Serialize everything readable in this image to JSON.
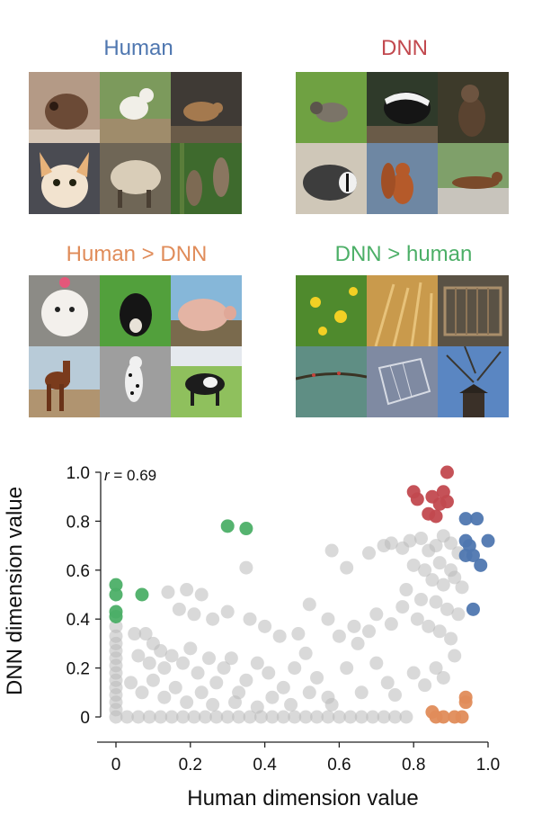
{
  "panels": [
    {
      "title": "Human",
      "color": "#4f77b0",
      "photos": [
        "rat",
        "small white dog",
        "mouse",
        "chihuahua",
        "sheep",
        "sloths"
      ]
    },
    {
      "title": "DNN",
      "color": "#c2494f",
      "photos": [
        "raccoon",
        "skunk",
        "otter",
        "badger",
        "squirrel",
        "weasel"
      ]
    },
    {
      "title": "Human > DNN",
      "color": "#e08c5a",
      "photos": [
        "poodle",
        "puppy",
        "pig",
        "horse",
        "dalmatian",
        "cow"
      ]
    },
    {
      "title": "DNN > human",
      "color": "#4caf67",
      "photos": [
        "yellow flowers",
        "wheat",
        "wooden cage",
        "branch",
        "wire cage",
        "bird feeder"
      ]
    }
  ],
  "chart_data": {
    "type": "scatter",
    "annotation": {
      "italic": "r",
      "text": " = 0.69"
    },
    "xlabel": "Human dimension value",
    "ylabel": "DNN dimension value",
    "xlim": [
      0,
      1.0
    ],
    "ylim": [
      0,
      1.0
    ],
    "x_ticks": [
      "0",
      "0.2",
      "0.4",
      "0.6",
      "0.8",
      "1.0"
    ],
    "y_ticks": [
      "0",
      "0.2",
      "0.4",
      "0.6",
      "0.8",
      "1.0"
    ],
    "grid": false,
    "colors": {
      "gray": "#b9b9b9",
      "human": "#4f77b0",
      "dnn": "#c2494f",
      "human_gt_dnn": "#e08c5a",
      "dnn_gt_human": "#4caf67"
    },
    "highlight_series": [
      {
        "group": "dnn",
        "points": [
          [
            0.89,
            1.0
          ],
          [
            0.8,
            0.92
          ],
          [
            0.81,
            0.89
          ],
          [
            0.85,
            0.9
          ],
          [
            0.88,
            0.92
          ],
          [
            0.87,
            0.87
          ],
          [
            0.89,
            0.88
          ],
          [
            0.84,
            0.83
          ],
          [
            0.86,
            0.82
          ]
        ]
      },
      {
        "group": "human",
        "points": [
          [
            0.94,
            0.81
          ],
          [
            0.97,
            0.81
          ],
          [
            0.94,
            0.72
          ],
          [
            1.0,
            0.72
          ],
          [
            0.95,
            0.7
          ],
          [
            0.94,
            0.66
          ],
          [
            0.96,
            0.66
          ],
          [
            0.98,
            0.62
          ],
          [
            0.96,
            0.44
          ]
        ]
      },
      {
        "group": "dnn_gt_human",
        "points": [
          [
            0.3,
            0.78
          ],
          [
            0.35,
            0.77
          ],
          [
            0.0,
            0.54
          ],
          [
            0.0,
            0.5
          ],
          [
            0.07,
            0.5
          ],
          [
            0.0,
            0.43
          ],
          [
            0.0,
            0.41
          ]
        ]
      },
      {
        "group": "human_gt_dnn",
        "points": [
          [
            0.94,
            0.08
          ],
          [
            0.94,
            0.06
          ],
          [
            0.85,
            0.02
          ],
          [
            0.86,
            0.0
          ],
          [
            0.88,
            0.0
          ],
          [
            0.91,
            0.0
          ],
          [
            0.93,
            0.0
          ]
        ]
      }
    ],
    "gray_points": [
      [
        0.0,
        0.37
      ],
      [
        0.0,
        0.33
      ],
      [
        0.0,
        0.3
      ],
      [
        0.0,
        0.27
      ],
      [
        0.0,
        0.24
      ],
      [
        0.0,
        0.21
      ],
      [
        0.0,
        0.18
      ],
      [
        0.0,
        0.15
      ],
      [
        0.0,
        0.12
      ],
      [
        0.0,
        0.09
      ],
      [
        0.0,
        0.06
      ],
      [
        0.0,
        0.03
      ],
      [
        0.0,
        0.0
      ],
      [
        0.03,
        0.0
      ],
      [
        0.06,
        0.0
      ],
      [
        0.09,
        0.0
      ],
      [
        0.12,
        0.0
      ],
      [
        0.15,
        0.0
      ],
      [
        0.18,
        0.0
      ],
      [
        0.21,
        0.0
      ],
      [
        0.24,
        0.0
      ],
      [
        0.27,
        0.0
      ],
      [
        0.3,
        0.0
      ],
      [
        0.33,
        0.0
      ],
      [
        0.36,
        0.0
      ],
      [
        0.39,
        0.0
      ],
      [
        0.42,
        0.0
      ],
      [
        0.45,
        0.0
      ],
      [
        0.48,
        0.0
      ],
      [
        0.51,
        0.0
      ],
      [
        0.54,
        0.0
      ],
      [
        0.57,
        0.0
      ],
      [
        0.6,
        0.0
      ],
      [
        0.63,
        0.0
      ],
      [
        0.66,
        0.0
      ],
      [
        0.69,
        0.0
      ],
      [
        0.72,
        0.0
      ],
      [
        0.75,
        0.0
      ],
      [
        0.78,
        0.0
      ],
      [
        0.35,
        0.61
      ],
      [
        0.58,
        0.68
      ],
      [
        0.62,
        0.61
      ],
      [
        0.68,
        0.67
      ],
      [
        0.72,
        0.7
      ],
      [
        0.74,
        0.71
      ],
      [
        0.77,
        0.69
      ],
      [
        0.79,
        0.72
      ],
      [
        0.82,
        0.73
      ],
      [
        0.84,
        0.68
      ],
      [
        0.86,
        0.7
      ],
      [
        0.88,
        0.74
      ],
      [
        0.9,
        0.71
      ],
      [
        0.92,
        0.67
      ],
      [
        0.8,
        0.62
      ],
      [
        0.83,
        0.6
      ],
      [
        0.87,
        0.63
      ],
      [
        0.9,
        0.6
      ],
      [
        0.85,
        0.56
      ],
      [
        0.88,
        0.54
      ],
      [
        0.91,
        0.57
      ],
      [
        0.93,
        0.53
      ],
      [
        0.78,
        0.52
      ],
      [
        0.82,
        0.48
      ],
      [
        0.86,
        0.47
      ],
      [
        0.89,
        0.44
      ],
      [
        0.92,
        0.42
      ],
      [
        0.81,
        0.4
      ],
      [
        0.84,
        0.37
      ],
      [
        0.87,
        0.35
      ],
      [
        0.9,
        0.32
      ],
      [
        0.77,
        0.45
      ],
      [
        0.74,
        0.38
      ],
      [
        0.7,
        0.42
      ],
      [
        0.68,
        0.35
      ],
      [
        0.65,
        0.3
      ],
      [
        0.14,
        0.51
      ],
      [
        0.19,
        0.52
      ],
      [
        0.23,
        0.5
      ],
      [
        0.17,
        0.44
      ],
      [
        0.21,
        0.42
      ],
      [
        0.26,
        0.4
      ],
      [
        0.3,
        0.43
      ],
      [
        0.36,
        0.4
      ],
      [
        0.4,
        0.37
      ],
      [
        0.44,
        0.33
      ],
      [
        0.49,
        0.34
      ],
      [
        0.52,
        0.46
      ],
      [
        0.57,
        0.4
      ],
      [
        0.6,
        0.33
      ],
      [
        0.64,
        0.37
      ],
      [
        0.05,
        0.34
      ],
      [
        0.08,
        0.34
      ],
      [
        0.1,
        0.3
      ],
      [
        0.12,
        0.27
      ],
      [
        0.06,
        0.25
      ],
      [
        0.09,
        0.22
      ],
      [
        0.13,
        0.2
      ],
      [
        0.15,
        0.25
      ],
      [
        0.18,
        0.22
      ],
      [
        0.2,
        0.28
      ],
      [
        0.22,
        0.18
      ],
      [
        0.25,
        0.24
      ],
      [
        0.27,
        0.14
      ],
      [
        0.29,
        0.2
      ],
      [
        0.31,
        0.24
      ],
      [
        0.33,
        0.1
      ],
      [
        0.35,
        0.15
      ],
      [
        0.38,
        0.22
      ],
      [
        0.41,
        0.18
      ],
      [
        0.45,
        0.12
      ],
      [
        0.48,
        0.2
      ],
      [
        0.51,
        0.26
      ],
      [
        0.54,
        0.16
      ],
      [
        0.57,
        0.08
      ],
      [
        0.62,
        0.2
      ],
      [
        0.66,
        0.1
      ],
      [
        0.7,
        0.22
      ],
      [
        0.73,
        0.14
      ],
      [
        0.75,
        0.09
      ],
      [
        0.8,
        0.18
      ],
      [
        0.83,
        0.13
      ],
      [
        0.86,
        0.2
      ],
      [
        0.88,
        0.16
      ],
      [
        0.91,
        0.25
      ],
      [
        0.04,
        0.14
      ],
      [
        0.07,
        0.1
      ],
      [
        0.1,
        0.15
      ],
      [
        0.13,
        0.08
      ],
      [
        0.16,
        0.12
      ],
      [
        0.19,
        0.06
      ],
      [
        0.23,
        0.1
      ],
      [
        0.26,
        0.05
      ],
      [
        0.32,
        0.06
      ],
      [
        0.38,
        0.04
      ],
      [
        0.42,
        0.08
      ],
      [
        0.47,
        0.05
      ],
      [
        0.52,
        0.1
      ],
      [
        0.58,
        0.05
      ]
    ]
  }
}
